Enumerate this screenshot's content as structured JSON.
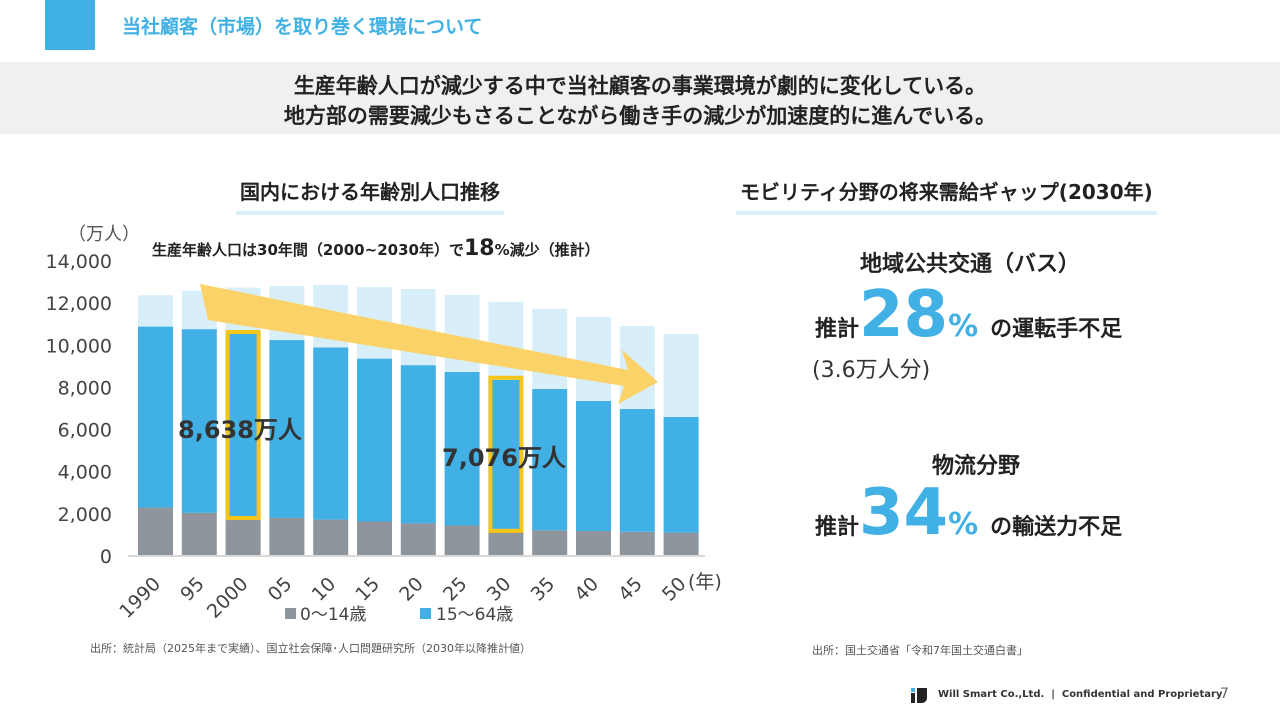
{
  "header": {
    "title": "当社顧客（市場）を取り巻く環境について"
  },
  "banner": {
    "line1": "生産年齢人口が減少する中で当社顧客の事業環境が劇的に変化している。",
    "line2": "地方部の需要減少もさることながら働き手の減少が加速度的に進んでいる。"
  },
  "left": {
    "heading": "国内における年齢別人口推移",
    "source": "出所：統計局（2025年まで実績）、国立社会保障･人口問題研究所（2030年以降推計値）"
  },
  "chart_data": {
    "type": "bar",
    "stacked": true,
    "annotation": {
      "pre": "生産年齢人口は30年間（2000~2030年）で",
      "num": "18",
      "pct": "%",
      "post": "減少（推計）"
    },
    "ylabel": "（万人）",
    "xunit": "(年)",
    "ylim": [
      0,
      14000
    ],
    "yticks": [
      "0",
      "2,000",
      "4,000",
      "6,000",
      "8,000",
      "10,000",
      "12,000",
      "14,000"
    ],
    "categories": [
      "1990",
      "95",
      "2000",
      "05",
      "10",
      "15",
      "20",
      "25",
      "30",
      "35",
      "40",
      "45",
      "50"
    ],
    "series": [
      {
        "name": "0～14歳",
        "color": "#8e959c",
        "values": [
          2250,
          2000,
          1850,
          1760,
          1680,
          1590,
          1500,
          1400,
          1240,
          1170,
          1140,
          1100,
          1060
        ]
      },
      {
        "name": "15～64歳",
        "color": "#41b0e4",
        "values": [
          8590,
          8720,
          8638,
          8440,
          8170,
          7730,
          7510,
          7290,
          7076,
          6710,
          6170,
          5830,
          5490
        ]
      },
      {
        "name": "",
        "color": "#d8eef9",
        "values": [
          1490,
          1830,
          2200,
          2570,
          2960,
          3390,
          3610,
          3650,
          3700,
          3800,
          3990,
          3940,
          3940
        ]
      }
    ],
    "highlights": [
      {
        "category": "2000",
        "label": "8,638万人"
      },
      {
        "category": "30",
        "label": "7,076万人"
      }
    ],
    "highlight_color": "#f5c518"
  },
  "right": {
    "heading": "モビリティ分野の将来需給ギャップ(2030年)",
    "bus": {
      "title": "地域公共交通（バス）",
      "pre": "推計",
      "num": "28",
      "pct": "%",
      "post": "の運転手不足",
      "sub": "(3.6万人分)"
    },
    "logistics": {
      "title": "物流分野",
      "pre": "推計",
      "num": "34",
      "pct": "%",
      "post": "の輸送力不足"
    },
    "source": "出所：国土交通省「令和7年国土交通白書」"
  },
  "footer": {
    "company": "Will Smart Co.,Ltd.  |  Confidential and Proprietary",
    "page": "7"
  }
}
